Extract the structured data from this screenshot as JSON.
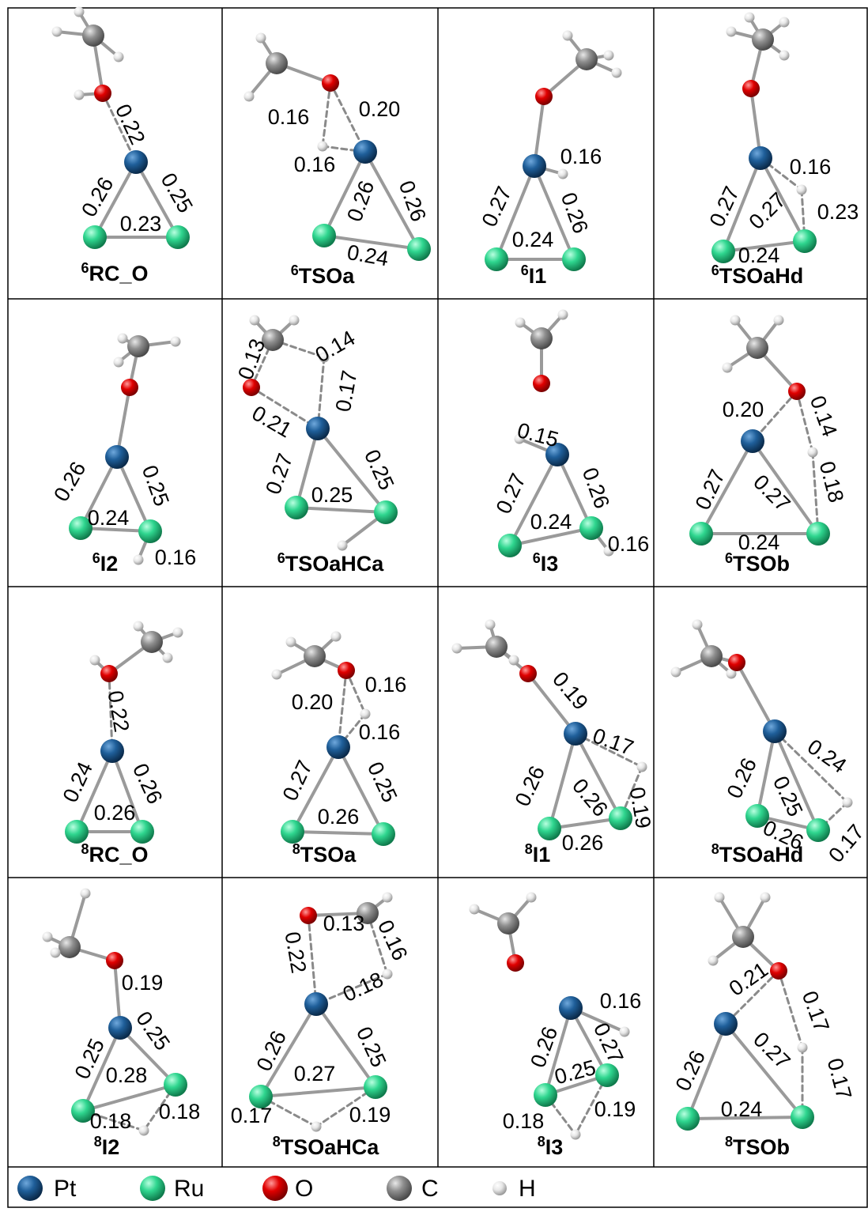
{
  "cells": [
    {
      "spin": "6",
      "name": "RC_O",
      "distances": [
        "0.22",
        "0.26",
        "0.25",
        "0.23"
      ]
    },
    {
      "spin": "6",
      "name": "TSOa",
      "distances": [
        "0.16",
        "0.20",
        "0.16",
        "0.26",
        "0.26",
        "0.24"
      ]
    },
    {
      "spin": "6",
      "name": "I1",
      "distances": [
        "0.16",
        "0.27",
        "0.26",
        "0.24"
      ]
    },
    {
      "spin": "6",
      "name": "TSOaHd",
      "distances": [
        "0.16",
        "0.27",
        "0.27",
        "0.23",
        "0.24"
      ]
    },
    {
      "spin": "6",
      "name": "I2",
      "distances": [
        "0.26",
        "0.25",
        "0.24",
        "0.16"
      ]
    },
    {
      "spin": "6",
      "name": "TSOaHCa",
      "distances": [
        "0.13",
        "0.14",
        "0.17",
        "0.21",
        "0.27",
        "0.25",
        "0.25"
      ]
    },
    {
      "spin": "6",
      "name": "I3",
      "distances": [
        "0.15",
        "0.27",
        "0.26",
        "0.24",
        "0.16"
      ]
    },
    {
      "spin": "6",
      "name": "TSOb",
      "distances": [
        "0.20",
        "0.14",
        "0.27",
        "0.27",
        "0.18",
        "0.24"
      ]
    },
    {
      "spin": "8",
      "name": "RC_O",
      "distances": [
        "0.22",
        "0.24",
        "0.26",
        "0.26"
      ]
    },
    {
      "spin": "8",
      "name": "TSOa",
      "distances": [
        "0.16",
        "0.20",
        "0.16",
        "0.27",
        "0.25",
        "0.26"
      ]
    },
    {
      "spin": "8",
      "name": "I1",
      "distances": [
        "0.19",
        "0.17",
        "0.26",
        "0.26",
        "0.19",
        "0.26"
      ]
    },
    {
      "spin": "8",
      "name": "TSOaHd",
      "distances": [
        "0.24",
        "0.26",
        "0.25",
        "0.26",
        "0.17"
      ]
    },
    {
      "spin": "8",
      "name": "I2",
      "distances": [
        "0.19",
        "0.25",
        "0.25",
        "0.28",
        "0.18",
        "0.18"
      ]
    },
    {
      "spin": "8",
      "name": "TSOaHCa",
      "distances": [
        "0.22",
        "0.13",
        "0.16",
        "0.18",
        "0.26",
        "0.25",
        "0.27",
        "0.17",
        "0.19"
      ]
    },
    {
      "spin": "8",
      "name": "I3",
      "distances": [
        "0.16",
        "0.26",
        "0.27",
        "0.25",
        "0.18",
        "0.19"
      ]
    },
    {
      "spin": "8",
      "name": "TSOb",
      "distances": [
        "0.21",
        "0.17",
        "0.26",
        "0.27",
        "0.17",
        "0.24"
      ]
    }
  ],
  "legend": [
    "Pt",
    "Ru",
    "O",
    "C",
    "H"
  ]
}
